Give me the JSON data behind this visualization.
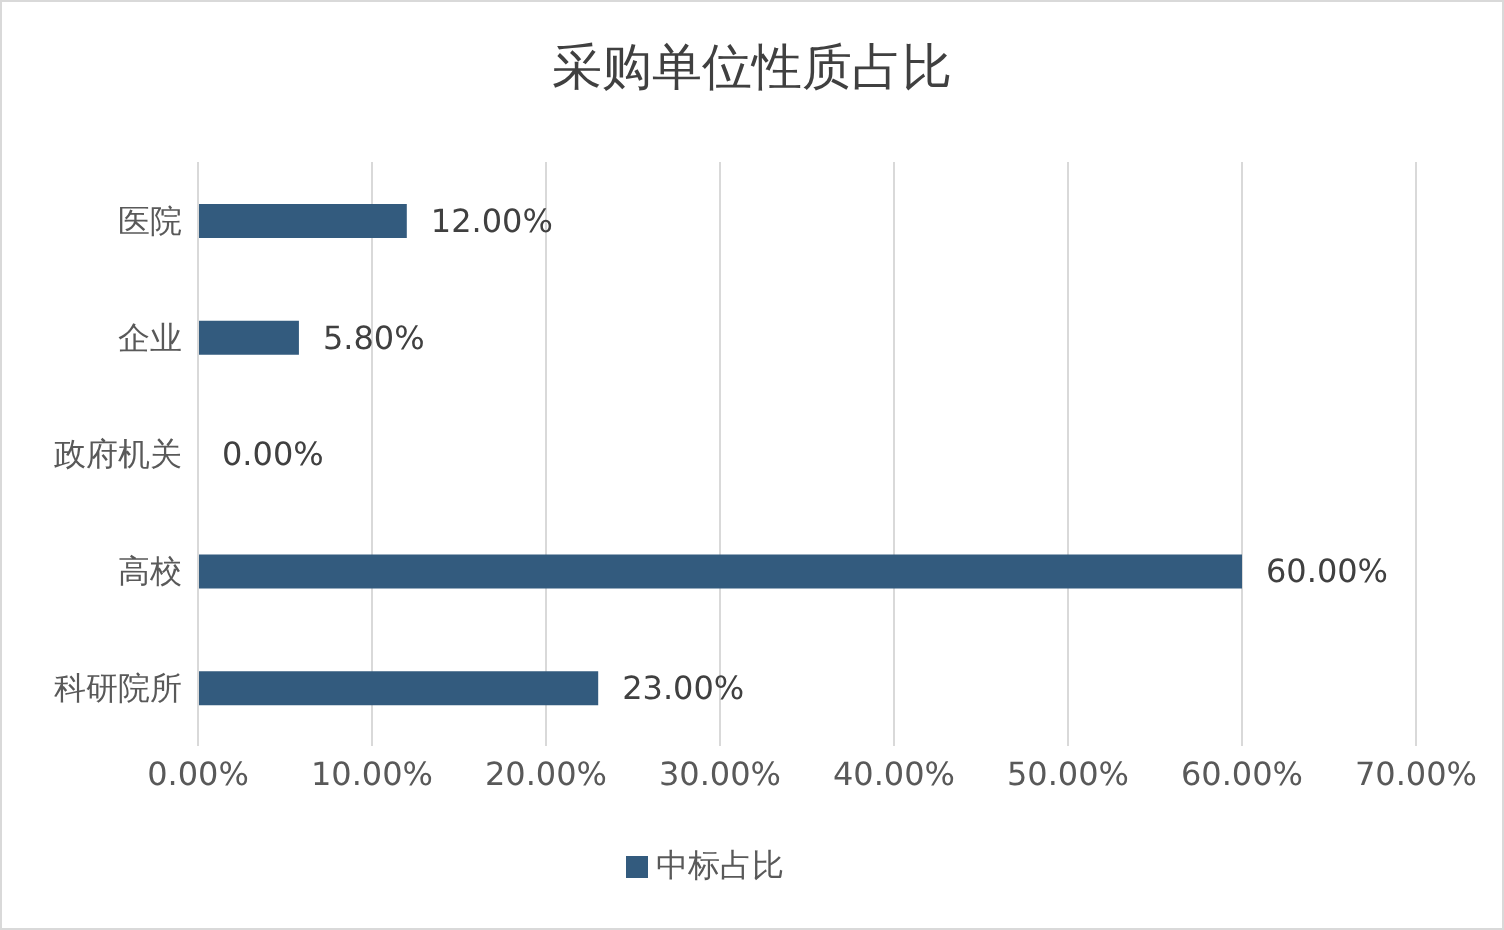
{
  "chart_data": {
    "type": "bar",
    "orientation": "horizontal",
    "title": "采购单位性质占比",
    "categories": [
      "医院",
      "企业",
      "政府机关",
      "高校",
      "科研院所"
    ],
    "series": [
      {
        "name": "中标占比",
        "color": "#335b7e",
        "values": [
          12,
          5.8,
          0,
          60,
          23
        ],
        "value_labels": [
          "12.00%",
          "5.80%",
          "0.00%",
          "60.00%",
          "23.00%"
        ]
      }
    ],
    "xlim": [
      0,
      70
    ],
    "xticks": [
      {
        "value": 0,
        "label": "0.00%"
      },
      {
        "value": 10,
        "label": "10.00%"
      },
      {
        "value": 20,
        "label": "20.00%"
      },
      {
        "value": 30,
        "label": "30.00%"
      },
      {
        "value": 40,
        "label": "40.00%"
      },
      {
        "value": 50,
        "label": "50.00%"
      },
      {
        "value": 60,
        "label": "60.00%"
      },
      {
        "value": 70,
        "label": "70.00%"
      }
    ],
    "grid": "x",
    "legend": "bottom"
  }
}
